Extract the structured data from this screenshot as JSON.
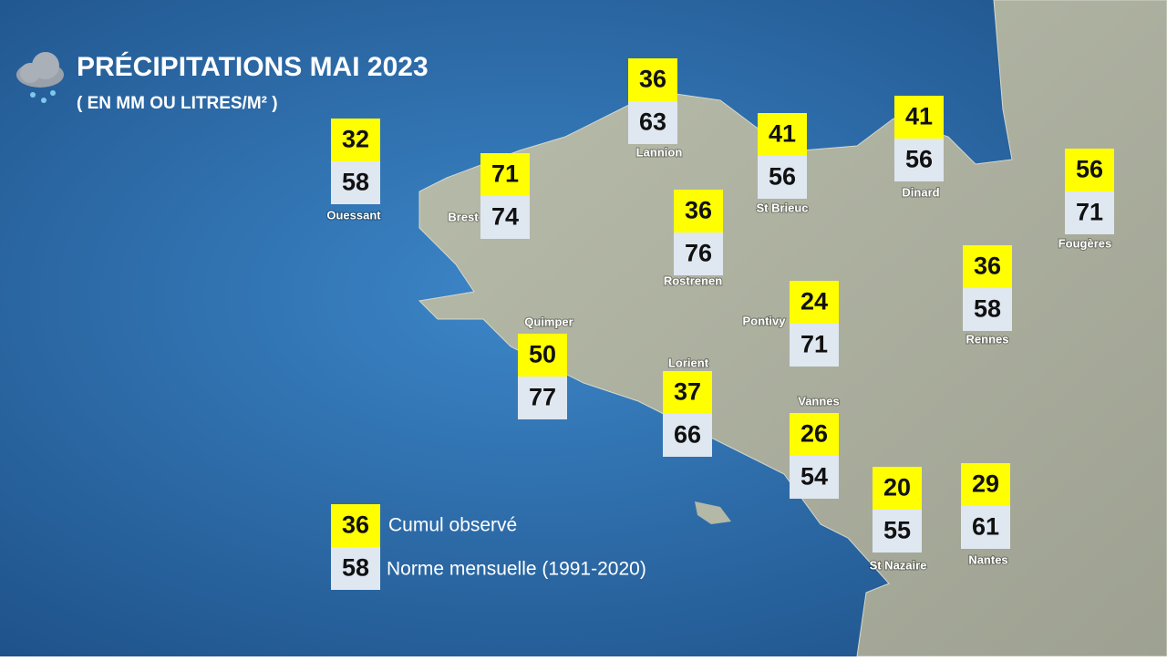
{
  "header": {
    "title": "PRÉCIPITATIONS MAI 2023",
    "subtitle": "( EN MM OU LITRES/M² )"
  },
  "stations": [
    {
      "name": "Ouessant",
      "observed": 32,
      "normal": 58
    },
    {
      "name": "Brest",
      "observed": 71,
      "normal": 74
    },
    {
      "name": "Lannion",
      "observed": 36,
      "normal": 63
    },
    {
      "name": "St Brieuc",
      "observed": 41,
      "normal": 56
    },
    {
      "name": "Dinard",
      "observed": 41,
      "normal": 56
    },
    {
      "name": "Fougères",
      "observed": 56,
      "normal": 71
    },
    {
      "name": "Rostrenen",
      "observed": 36,
      "normal": 76
    },
    {
      "name": "Pontivy",
      "observed": 24,
      "normal": 71
    },
    {
      "name": "Rennes",
      "observed": 36,
      "normal": 58
    },
    {
      "name": "Quimper",
      "observed": 50,
      "normal": 77
    },
    {
      "name": "Lorient",
      "observed": 37,
      "normal": 66
    },
    {
      "name": "Vannes",
      "observed": 26,
      "normal": 54
    },
    {
      "name": "St Nazaire",
      "observed": 20,
      "normal": 55
    },
    {
      "name": "Nantes",
      "observed": 29,
      "normal": 61
    }
  ],
  "legend": {
    "observed": {
      "value": 36,
      "label": "Cumul observé"
    },
    "normal": {
      "value": 58,
      "label": "Norme mensuelle (1991-2020)"
    }
  }
}
